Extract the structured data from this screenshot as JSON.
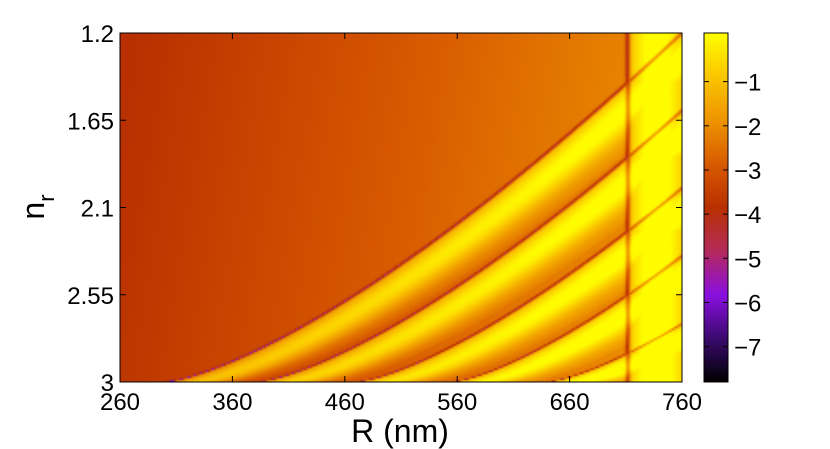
{
  "chart_data": {
    "type": "heatmap",
    "title": "",
    "xlabel": "R (nm)",
    "ylabel_main": "n",
    "ylabel_sub": "r",
    "x_range": [
      260,
      760
    ],
    "y_range": [
      1.2,
      3
    ],
    "y_reversed": true,
    "x_ticks": [
      "260",
      "360",
      "460",
      "560",
      "660",
      "760"
    ],
    "x_tick_values": [
      260,
      360,
      460,
      560,
      660,
      760
    ],
    "y_ticks": [
      "1.2",
      "1.65",
      "2.1",
      "2.55",
      "3"
    ],
    "y_tick_values": [
      1.2,
      1.65,
      2.1,
      2.55,
      3.0
    ],
    "colorbar": {
      "range": [
        -7.8,
        0.1
      ],
      "ticks": [
        "−1",
        "−2",
        "−3",
        "−4",
        "−5",
        "−6",
        "−7"
      ],
      "tick_values": [
        -1,
        -2,
        -3,
        -4,
        -5,
        -6,
        -7
      ],
      "colormap": [
        "#000000",
        "#3a0a6e",
        "#8a0fe0",
        "#b42a5a",
        "#b83000",
        "#d85a00",
        "#ee9400",
        "#fbc600",
        "#ffff00"
      ]
    },
    "resonance_curves": [
      {
        "n_r_at_760": 1.2,
        "R_at_n3": 300
      },
      {
        "n_r_at_760": 1.6,
        "R_at_n3": 382
      },
      {
        "n_r_at_760": 2.0,
        "R_at_n3": 470
      },
      {
        "n_r_at_760": 2.35,
        "R_at_n3": 555
      },
      {
        "n_r_at_760": 2.7,
        "R_at_n3": 640
      },
      {
        "n_r_at_760": 3.0,
        "R_at_n3": 712
      }
    ],
    "grid": false
  }
}
